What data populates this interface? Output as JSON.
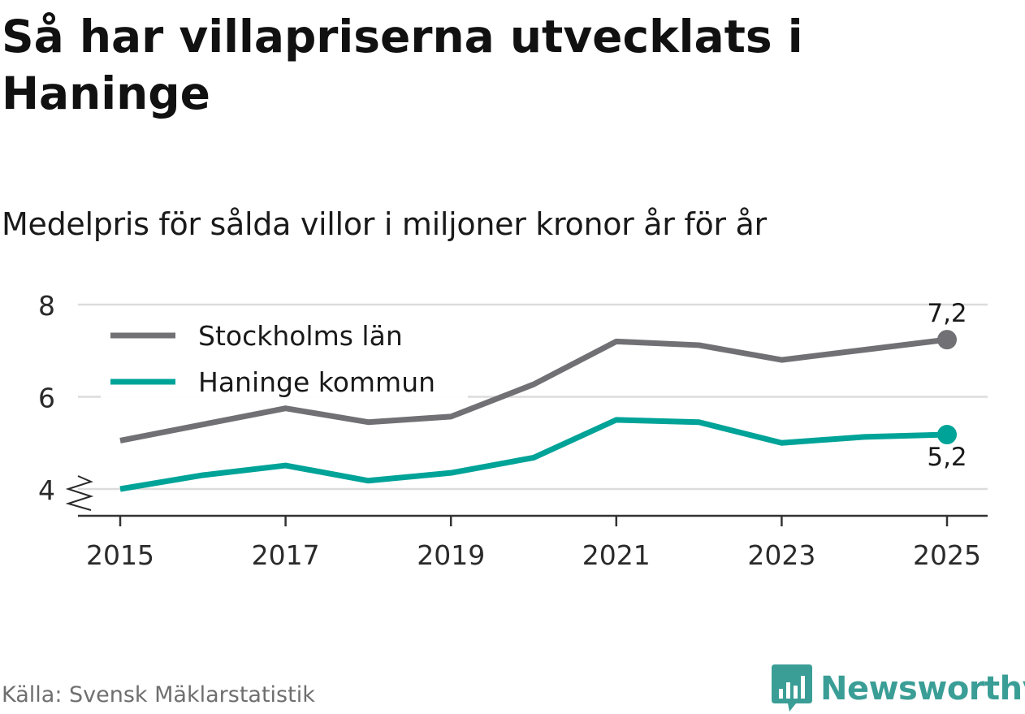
{
  "title": "Så har villapriserna utvecklats i Haninge",
  "subtitle": "Medelpris för sålda villor i miljoner kronor år för år",
  "source": "Källa: Svensk Mäklarstatistik",
  "brand": {
    "name": "Newsworthy",
    "icon": "bar-chart-speech-bubble-icon",
    "color": "#3a9e96"
  },
  "chart_data": {
    "type": "line",
    "x": [
      2015,
      2016,
      2017,
      2018,
      2019,
      2020,
      2021,
      2022,
      2023,
      2024,
      2025
    ],
    "x_ticks": [
      "2015",
      "2017",
      "2019",
      "2021",
      "2023",
      "2025"
    ],
    "y_ticks": [
      "4",
      "6",
      "8"
    ],
    "ylim": [
      4,
      8
    ],
    "y_axis_break": true,
    "grid": true,
    "legend": "top-left",
    "series": [
      {
        "name": "Stockholms län",
        "color": "#707075",
        "values": [
          5.05,
          5.4,
          5.75,
          5.45,
          5.57,
          6.27,
          7.2,
          7.12,
          6.8,
          7.02,
          7.24
        ],
        "end_label": "7,2"
      },
      {
        "name": "Haninge kommun",
        "color": "#00a398",
        "values": [
          4.0,
          4.3,
          4.51,
          4.18,
          4.35,
          4.68,
          5.5,
          5.45,
          5.0,
          5.13,
          5.18
        ],
        "end_label": "5,2"
      }
    ]
  }
}
